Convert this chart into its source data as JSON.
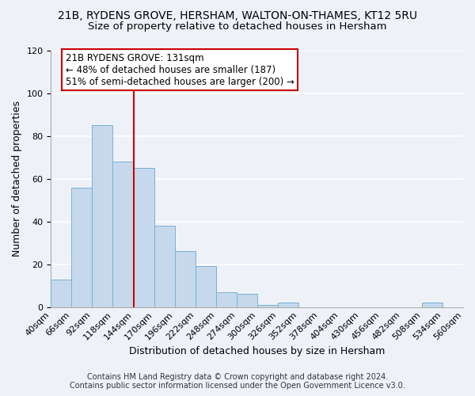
{
  "title": "21B, RYDENS GROVE, HERSHAM, WALTON-ON-THAMES, KT12 5RU",
  "subtitle": "Size of property relative to detached houses in Hersham",
  "xlabel": "Distribution of detached houses by size in Hersham",
  "ylabel": "Number of detached properties",
  "bar_values": [
    13,
    56,
    85,
    68,
    65,
    38,
    26,
    19,
    7,
    6,
    1,
    2,
    0,
    0,
    0,
    0,
    0,
    0,
    2,
    0
  ],
  "bin_labels": [
    "40sqm",
    "66sqm",
    "92sqm",
    "118sqm",
    "144sqm",
    "170sqm",
    "196sqm",
    "222sqm",
    "248sqm",
    "274sqm",
    "300sqm",
    "326sqm",
    "352sqm",
    "378sqm",
    "404sqm",
    "430sqm",
    "456sqm",
    "482sqm",
    "508sqm",
    "534sqm",
    "560sqm"
  ],
  "bar_color": "#c6d9ec",
  "bar_edge_color": "#7aafd4",
  "ylim": [
    0,
    120
  ],
  "yticks": [
    0,
    20,
    40,
    60,
    80,
    100,
    120
  ],
  "vline_color": "#cc0000",
  "annotation_title": "21B RYDENS GROVE: 131sqm",
  "annotation_line1": "← 48% of detached houses are smaller (187)",
  "annotation_line2": "51% of semi-detached houses are larger (200) →",
  "annotation_box_color": "#ffffff",
  "annotation_box_edge": "#cc0000",
  "footer_line1": "Contains HM Land Registry data © Crown copyright and database right 2024.",
  "footer_line2": "Contains public sector information licensed under the Open Government Licence v3.0.",
  "background_color": "#eef2f8",
  "grid_color": "#ffffff",
  "title_fontsize": 10,
  "subtitle_fontsize": 9.5,
  "axis_label_fontsize": 9,
  "tick_fontsize": 8,
  "footer_fontsize": 7,
  "annotation_fontsize": 8.5
}
